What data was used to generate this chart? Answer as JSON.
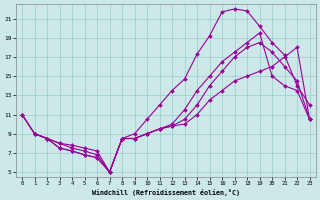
{
  "xlabel": "Windchill (Refroidissement éolien,°C)",
  "bg_color": "#cce8e8",
  "line_color": "#990099",
  "grid_color": "#99cccc",
  "xlim": [
    -0.5,
    23.5
  ],
  "ylim": [
    4.5,
    22.5
  ],
  "xticks": [
    0,
    1,
    2,
    3,
    4,
    5,
    6,
    7,
    8,
    9,
    10,
    11,
    12,
    13,
    14,
    15,
    16,
    17,
    18,
    19,
    20,
    21,
    22,
    23
  ],
  "yticks": [
    5,
    7,
    9,
    11,
    13,
    15,
    17,
    19,
    21
  ],
  "curves": [
    {
      "x": [
        0,
        1,
        2,
        3,
        4,
        5,
        6,
        7,
        8,
        9,
        10,
        11,
        12,
        13,
        14,
        15,
        16,
        17,
        18,
        19,
        20,
        21,
        22,
        23
      ],
      "y": [
        11,
        9,
        8.5,
        8.0,
        7.5,
        7.2,
        6.8,
        5.0,
        8.5,
        8.5,
        9.0,
        9.5,
        9.8,
        10.5,
        12.0,
        14.0,
        15.5,
        17.0,
        18.0,
        18.5,
        17.5,
        16.0,
        14.5,
        10.5
      ]
    },
    {
      "x": [
        0,
        1,
        2,
        3,
        4,
        5,
        6,
        7,
        8,
        9,
        10,
        11,
        12,
        13,
        14,
        15,
        16,
        17,
        18,
        19,
        20,
        21,
        22,
        23
      ],
      "y": [
        11,
        9,
        8.5,
        7.5,
        7.2,
        6.8,
        6.5,
        5.0,
        8.5,
        9.0,
        10.5,
        12.0,
        13.5,
        14.7,
        17.3,
        19.2,
        21.7,
        22.0,
        21.8,
        20.2,
        18.5,
        17.2,
        14.0,
        12.0
      ]
    },
    {
      "x": [
        0,
        1,
        2,
        3,
        4,
        5,
        6,
        7,
        8,
        9,
        10,
        11,
        12,
        13,
        14,
        15,
        16,
        17,
        18,
        19,
        20,
        21,
        22,
        23
      ],
      "y": [
        11,
        9,
        8.5,
        7.5,
        7.2,
        6.8,
        6.5,
        5.0,
        8.5,
        8.5,
        9.0,
        9.5,
        10.0,
        11.5,
        13.5,
        15.0,
        16.5,
        17.5,
        18.5,
        19.5,
        15.0,
        14.0,
        13.5,
        10.5
      ]
    },
    {
      "x": [
        1,
        2,
        3,
        4,
        5,
        6,
        7,
        8,
        9,
        10,
        11,
        12,
        13,
        14,
        15,
        16,
        17,
        18,
        19,
        20,
        21,
        22,
        23
      ],
      "y": [
        9,
        8.5,
        8.0,
        7.8,
        7.5,
        7.2,
        5.0,
        8.5,
        8.5,
        9.0,
        9.5,
        9.8,
        10.0,
        11.0,
        12.5,
        13.5,
        14.5,
        15.0,
        15.5,
        16.0,
        17.0,
        18.0,
        10.5
      ]
    }
  ]
}
